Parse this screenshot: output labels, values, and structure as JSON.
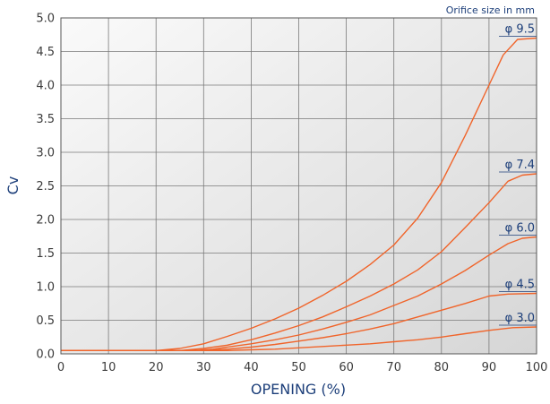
{
  "chart_data": {
    "type": "line",
    "title": "",
    "xlabel": "OPENING (%)",
    "ylabel": "Cv",
    "annotation": "Orifice size in mm",
    "xlim": [
      0,
      100
    ],
    "ylim": [
      0,
      5.0
    ],
    "x_ticks": [
      "0",
      "10",
      "20",
      "30",
      "40",
      "50",
      "60",
      "70",
      "80",
      "90",
      "100"
    ],
    "y_ticks": [
      "0.0",
      "0.5",
      "1.0",
      "1.5",
      "2.0",
      "2.5",
      "3.0",
      "3.5",
      "4.0",
      "4.5",
      "5.0"
    ],
    "grid": true,
    "line_color": "#f0642a",
    "series": [
      {
        "name": "φ 9.5",
        "points": [
          [
            0,
            0.05
          ],
          [
            20,
            0.05
          ],
          [
            25,
            0.08
          ],
          [
            30,
            0.15
          ],
          [
            35,
            0.26
          ],
          [
            40,
            0.38
          ],
          [
            45,
            0.52
          ],
          [
            50,
            0.68
          ],
          [
            55,
            0.87
          ],
          [
            60,
            1.08
          ],
          [
            65,
            1.33
          ],
          [
            70,
            1.62
          ],
          [
            75,
            2.02
          ],
          [
            80,
            2.55
          ],
          [
            85,
            3.25
          ],
          [
            90,
            4.0
          ],
          [
            93,
            4.45
          ],
          [
            96,
            4.68
          ],
          [
            100,
            4.7
          ]
        ]
      },
      {
        "name": "φ 7.4",
        "points": [
          [
            0,
            0.05
          ],
          [
            25,
            0.05
          ],
          [
            30,
            0.08
          ],
          [
            35,
            0.13
          ],
          [
            40,
            0.21
          ],
          [
            45,
            0.31
          ],
          [
            50,
            0.42
          ],
          [
            55,
            0.55
          ],
          [
            60,
            0.7
          ],
          [
            65,
            0.86
          ],
          [
            70,
            1.04
          ],
          [
            75,
            1.25
          ],
          [
            80,
            1.52
          ],
          [
            85,
            1.88
          ],
          [
            90,
            2.25
          ],
          [
            94,
            2.57
          ],
          [
            97,
            2.66
          ],
          [
            100,
            2.68
          ]
        ]
      },
      {
        "name": "φ 6.0",
        "points": [
          [
            0,
            0.05
          ],
          [
            28,
            0.05
          ],
          [
            32,
            0.07
          ],
          [
            35,
            0.1
          ],
          [
            40,
            0.15
          ],
          [
            45,
            0.21
          ],
          [
            50,
            0.28
          ],
          [
            55,
            0.37
          ],
          [
            60,
            0.47
          ],
          [
            65,
            0.58
          ],
          [
            70,
            0.72
          ],
          [
            75,
            0.86
          ],
          [
            80,
            1.04
          ],
          [
            85,
            1.24
          ],
          [
            90,
            1.47
          ],
          [
            94,
            1.64
          ],
          [
            97,
            1.72
          ],
          [
            100,
            1.74
          ]
        ]
      },
      {
        "name": "φ 4.5",
        "points": [
          [
            0,
            0.05
          ],
          [
            30,
            0.05
          ],
          [
            35,
            0.07
          ],
          [
            40,
            0.1
          ],
          [
            45,
            0.14
          ],
          [
            50,
            0.19
          ],
          [
            55,
            0.24
          ],
          [
            60,
            0.3
          ],
          [
            65,
            0.37
          ],
          [
            70,
            0.45
          ],
          [
            75,
            0.55
          ],
          [
            80,
            0.65
          ],
          [
            85,
            0.75
          ],
          [
            90,
            0.86
          ],
          [
            94,
            0.89
          ],
          [
            100,
            0.9
          ]
        ]
      },
      {
        "name": "φ 3.0",
        "points": [
          [
            0,
            0.05
          ],
          [
            35,
            0.05
          ],
          [
            40,
            0.06
          ],
          [
            45,
            0.07
          ],
          [
            50,
            0.09
          ],
          [
            55,
            0.11
          ],
          [
            60,
            0.13
          ],
          [
            65,
            0.15
          ],
          [
            70,
            0.18
          ],
          [
            75,
            0.21
          ],
          [
            80,
            0.25
          ],
          [
            85,
            0.3
          ],
          [
            90,
            0.35
          ],
          [
            95,
            0.39
          ],
          [
            100,
            0.4
          ]
        ]
      }
    ]
  }
}
